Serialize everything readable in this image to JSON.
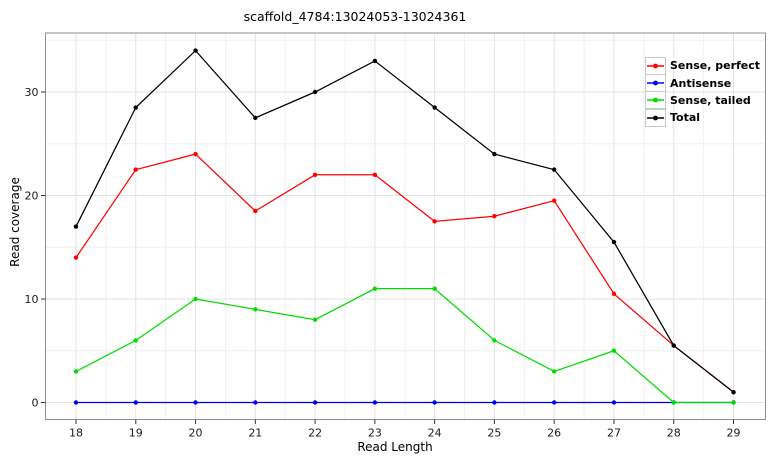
{
  "chart_data": {
    "type": "line",
    "title": "scaffold_4784:13024053-13024361",
    "xlabel": "Read Length",
    "ylabel": "Read coverage",
    "x": [
      18,
      19,
      20,
      21,
      22,
      23,
      24,
      25,
      26,
      27,
      28,
      29
    ],
    "y_ticks": [
      0,
      10,
      20,
      30
    ],
    "xlim": [
      17.5,
      29.55
    ],
    "ylim": [
      -1.7,
      35.7
    ],
    "grid": {
      "major": true,
      "minor": true
    },
    "legend_position": "inside-top-right",
    "marker": "filled-circle",
    "series": [
      {
        "name": "Sense, perfect",
        "color": "#ff0000",
        "values": [
          14,
          22.5,
          24,
          18.5,
          22,
          22,
          17.5,
          18,
          19.5,
          10.5,
          5.5,
          1
        ]
      },
      {
        "name": "Antisense",
        "color": "#0000ee",
        "values": [
          0,
          0,
          0,
          0,
          0,
          0,
          0,
          0,
          0,
          0,
          0,
          0
        ]
      },
      {
        "name": "Sense, tailed",
        "color": "#00dc00",
        "values": [
          3,
          6,
          10,
          9,
          8,
          11,
          11,
          6,
          3,
          5,
          0,
          0
        ]
      },
      {
        "name": "Total",
        "color": "#000000",
        "values": [
          17,
          28.5,
          34,
          27.5,
          30,
          33,
          28.5,
          24,
          22.5,
          15.5,
          5.5,
          1
        ]
      }
    ]
  }
}
